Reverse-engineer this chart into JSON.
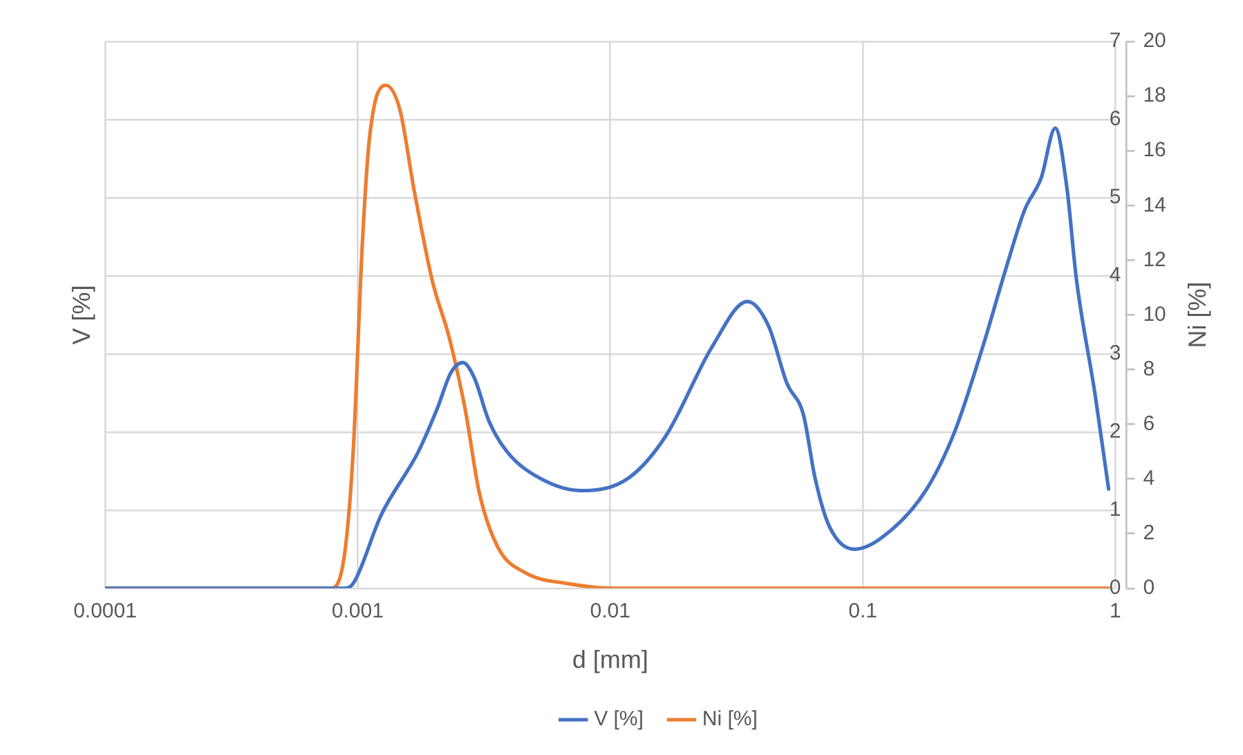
{
  "chart_data": {
    "type": "line",
    "xlabel": "d [mm]",
    "ylabel": "V [%]",
    "y2label": "Ni [%]",
    "log": "x",
    "grid": true,
    "legend": "bottom",
    "marker": "none",
    "line_style": "solid",
    "xlim": [
      0.0001,
      1
    ],
    "xticks": [
      0.0001,
      0.001,
      0.01,
      0.1,
      1
    ],
    "ylim": [
      0,
      7
    ],
    "yticks": [
      0,
      1,
      2,
      3,
      4,
      5,
      6,
      7
    ],
    "y2lim": [
      0,
      20
    ],
    "y2ticks": [
      0,
      2,
      4,
      6,
      8,
      10,
      12,
      14,
      16,
      18,
      20
    ],
    "series": [
      {
        "name": "V [%]",
        "color": "#4472c4",
        "x": [
          0.0001,
          0.00088,
          0.00096,
          0.00124,
          0.00174,
          0.00206,
          0.00234,
          0.00261,
          0.0029,
          0.0033,
          0.0039,
          0.00526,
          0.0077,
          0.0118,
          0.0166,
          0.0254,
          0.0349,
          0.0423,
          0.0501,
          0.0582,
          0.0647,
          0.0735,
          0.093,
          0.128,
          0.179,
          0.232,
          0.299,
          0.37,
          0.438,
          0.508,
          0.578,
          0.643,
          0.7,
          0.83,
          0.94
        ],
        "values": [
          0,
          0,
          0.06,
          0.94,
          1.75,
          2.29,
          2.76,
          2.89,
          2.69,
          2.15,
          1.75,
          1.41,
          1.25,
          1.41,
          1.95,
          3.1,
          3.67,
          3.36,
          2.62,
          2.22,
          1.41,
          0.8,
          0.5,
          0.73,
          1.27,
          2.02,
          3.1,
          4.11,
          4.85,
          5.25,
          5.89,
          5.12,
          3.97,
          2.49,
          1.27
        ]
      },
      {
        "name": "Ni [%]",
        "color": "#ed7d31",
        "axis": "y2",
        "x": [
          0.0001,
          0.00078,
          0.000884,
          0.00096,
          0.001045,
          0.001115,
          0.00129,
          0.00147,
          0.00167,
          0.00198,
          0.0023,
          0.00267,
          0.00303,
          0.00359,
          0.00463,
          0.0068,
          0.0104,
          0.94
        ],
        "values": [
          0,
          0,
          1.14,
          5,
          12.7,
          16.5,
          18.4,
          17.5,
          14.6,
          11.2,
          9.2,
          6.5,
          3.5,
          1.5,
          0.56,
          0.17,
          0,
          0
        ]
      }
    ]
  }
}
